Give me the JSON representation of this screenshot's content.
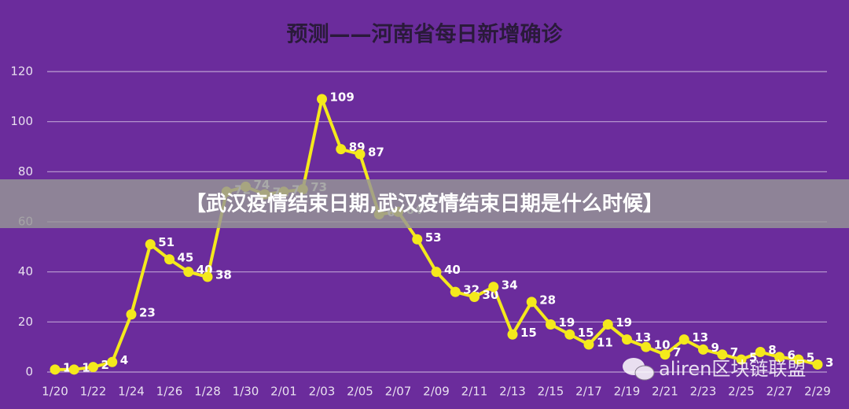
{
  "chart_data": {
    "type": "line",
    "title": "预测——河南省每日新增确诊",
    "categories": [
      "1/20",
      null,
      "1/22",
      null,
      "1/24",
      null,
      "1/26",
      null,
      "1/28",
      null,
      "1/30",
      null,
      "2/01",
      null,
      "2/03",
      null,
      "2/05",
      null,
      "2/07",
      null,
      "2/09",
      null,
      "2/11",
      null,
      "2/13",
      null,
      "2/15",
      null,
      "2/17",
      null,
      "2/19",
      null,
      "2/21",
      null,
      "2/23",
      null,
      "2/25",
      null,
      "2/27",
      null,
      "2/29"
    ],
    "series": [
      {
        "color": "#f4e91c",
        "values": [
          1,
          1,
          2,
          4,
          23,
          51,
          45,
          40,
          38,
          72,
          74,
          71,
          72,
          73,
          109,
          89,
          87,
          63,
          64,
          53,
          40,
          32,
          30,
          34,
          15,
          28,
          19,
          15,
          11,
          19,
          13,
          10,
          7,
          13,
          9,
          7,
          5,
          8,
          6,
          5,
          3
        ]
      }
    ],
    "ylim": [
      0,
      120
    ],
    "yticks": [
      0,
      20,
      40,
      60,
      80,
      100,
      120
    ],
    "grid": true
  },
  "banner": "【武汉疫情结束日期,武汉疫情结束日期是什么时候】",
  "watermark": "aliren区块链联盟"
}
